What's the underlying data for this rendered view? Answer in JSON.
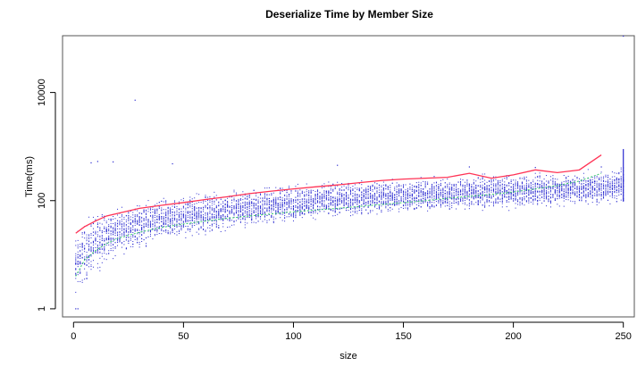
{
  "chart_data": {
    "type": "scatter",
    "title": "Deserialize Time by Member Size",
    "xlabel": "size",
    "ylabel": "Time(ms)",
    "xlim": [
      -5,
      255
    ],
    "ylim_log10": [
      -0.15,
      5.05
    ],
    "y_scale": "log",
    "x_ticks": [
      0,
      50,
      100,
      150,
      200,
      250
    ],
    "y_ticks": [
      {
        "value": 1,
        "label": "1"
      },
      {
        "value": 100,
        "label": "100"
      },
      {
        "value": 10000,
        "label": "10000"
      }
    ],
    "grid": false,
    "colors": {
      "points": "#2a2ad0",
      "upper_line": "#ff3355",
      "median_line": "#33cc66",
      "frame": "#555555"
    },
    "series": [
      {
        "name": "",
        "kind": "point_band",
        "x_range": [
          1,
          250
        ],
        "lower": [
          [
            1,
            1
          ],
          [
            3,
            1.6
          ],
          [
            6,
            2.5
          ],
          [
            10,
            4
          ],
          [
            15,
            6
          ],
          [
            20,
            8
          ],
          [
            30,
            11
          ],
          [
            40,
            14
          ],
          [
            50,
            17
          ],
          [
            60,
            20
          ],
          [
            70,
            24
          ],
          [
            80,
            28
          ],
          [
            90,
            31
          ],
          [
            100,
            35
          ],
          [
            110,
            38
          ],
          [
            120,
            42
          ],
          [
            130,
            45
          ],
          [
            140,
            48
          ],
          [
            150,
            50
          ],
          [
            160,
            52
          ],
          [
            170,
            55
          ],
          [
            180,
            58
          ],
          [
            190,
            60
          ],
          [
            200,
            62
          ],
          [
            210,
            65
          ],
          [
            220,
            68
          ],
          [
            230,
            72
          ],
          [
            240,
            75
          ],
          [
            250,
            78
          ]
        ],
        "upper": [
          [
            1,
            40
          ],
          [
            10,
            70
          ],
          [
            20,
            90
          ],
          [
            30,
            110
          ],
          [
            40,
            130
          ],
          [
            50,
            150
          ],
          [
            60,
            165
          ],
          [
            70,
            180
          ],
          [
            80,
            195
          ],
          [
            90,
            210
          ],
          [
            100,
            230
          ],
          [
            110,
            240
          ],
          [
            120,
            255
          ],
          [
            130,
            270
          ],
          [
            140,
            290
          ],
          [
            150,
            300
          ],
          [
            160,
            310
          ],
          [
            170,
            320
          ],
          [
            180,
            340
          ],
          [
            190,
            340
          ],
          [
            200,
            350
          ],
          [
            210,
            360
          ],
          [
            220,
            370
          ],
          [
            230,
            380
          ],
          [
            240,
            400
          ],
          [
            250,
            500
          ]
        ]
      },
      {
        "name": "",
        "kind": "outliers",
        "points": [
          [
            1,
            1
          ],
          [
            2,
            1
          ],
          [
            8,
            500
          ],
          [
            11,
            530
          ],
          [
            18,
            520
          ],
          [
            28,
            7200
          ],
          [
            45,
            480
          ],
          [
            120,
            450
          ],
          [
            180,
            420
          ],
          [
            210,
            410
          ],
          [
            240,
            420
          ],
          [
            250,
            110000
          ],
          [
            250,
            300
          ],
          [
            250,
            100
          ]
        ]
      },
      {
        "name": "",
        "kind": "line",
        "color": "upper_line",
        "x": [
          1,
          5,
          10,
          15,
          20,
          30,
          40,
          50,
          60,
          70,
          80,
          90,
          100,
          110,
          120,
          130,
          140,
          150,
          160,
          170,
          180,
          190,
          200,
          210,
          220,
          230,
          240
        ],
        "y": [
          25,
          33,
          42,
          52,
          58,
          72,
          82,
          92,
          105,
          118,
          135,
          150,
          165,
          180,
          195,
          215,
          235,
          250,
          260,
          270,
          320,
          260,
          300,
          370,
          330,
          370,
          700
        ]
      },
      {
        "name": "",
        "kind": "line",
        "color": "median_line",
        "x": [
          1,
          5,
          10,
          15,
          20,
          30,
          40,
          50,
          60,
          70,
          80,
          90,
          100,
          110,
          120,
          130,
          140,
          150,
          160,
          170,
          180,
          190,
          200,
          210,
          220,
          230,
          240
        ],
        "y": [
          4,
          8,
          12,
          16,
          20,
          26,
          32,
          37,
          42,
          47,
          52,
          57,
          62,
          67,
          72,
          78,
          85,
          92,
          100,
          110,
          120,
          130,
          145,
          165,
          190,
          230,
          320
        ]
      }
    ]
  }
}
